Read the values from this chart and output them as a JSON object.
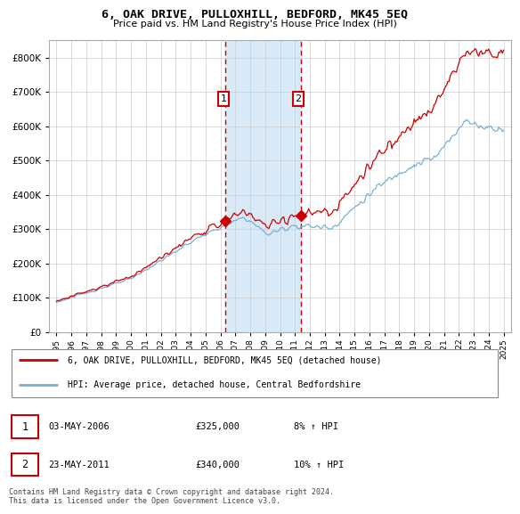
{
  "title": "6, OAK DRIVE, PULLOXHILL, BEDFORD, MK45 5EQ",
  "subtitle": "Price paid vs. HM Land Registry's House Price Index (HPI)",
  "legend_line1": "6, OAK DRIVE, PULLOXHILL, BEDFORD, MK45 5EQ (detached house)",
  "legend_line2": "HPI: Average price, detached house, Central Bedfordshire",
  "table_row1": [
    "1",
    "03-MAY-2006",
    "£325,000",
    "8% ↑ HPI"
  ],
  "table_row2": [
    "2",
    "23-MAY-2011",
    "£340,000",
    "10% ↑ HPI"
  ],
  "footnote": "Contains HM Land Registry data © Crown copyright and database right 2024.\nThis data is licensed under the Open Government Licence v3.0.",
  "red_color": "#cc0000",
  "blue_color": "#7ab0d4",
  "shade_color": "#d8eaf7",
  "marker1_year": 2006.35,
  "marker2_year": 2011.38,
  "purchase1_price": 325000,
  "purchase2_price": 340000,
  "ylim": [
    0,
    850000
  ],
  "yticks": [
    0,
    100000,
    200000,
    300000,
    400000,
    500000,
    600000,
    700000,
    800000
  ],
  "start_year": 1995,
  "end_year": 2025
}
